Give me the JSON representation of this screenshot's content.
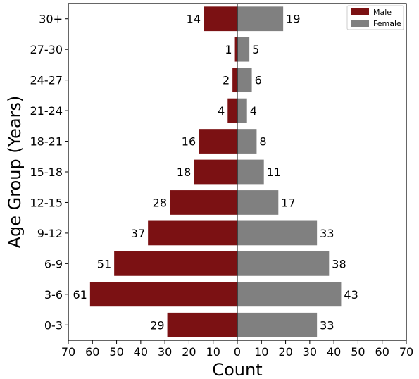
{
  "chart_data": {
    "type": "bar",
    "orientation": "horizontal",
    "layout": "population-pyramid",
    "categories": [
      "0-3",
      "3-6",
      "6-9",
      "9-12",
      "12-15",
      "15-18",
      "18-21",
      "21-24",
      "24-27",
      "27-30",
      "30+"
    ],
    "series": [
      {
        "name": "Male",
        "values": [
          29,
          61,
          51,
          37,
          28,
          18,
          16,
          4,
          2,
          1,
          14
        ],
        "color": "#7b1113",
        "side": "left"
      },
      {
        "name": "Female",
        "values": [
          33,
          43,
          38,
          33,
          17,
          11,
          8,
          4,
          6,
          5,
          19
        ],
        "color": "#808080",
        "side": "right"
      }
    ],
    "xlabel": "Count",
    "ylabel": "Age Group (Years)",
    "xlim": [
      -70,
      70
    ],
    "xtick_values": [
      -70,
      -60,
      -50,
      -40,
      -30,
      -20,
      -10,
      0,
      10,
      20,
      30,
      40,
      50,
      60,
      70
    ],
    "xtick_labels": [
      "70",
      "60",
      "50",
      "40",
      "30",
      "20",
      "10",
      "0",
      "10",
      "20",
      "30",
      "40",
      "50",
      "60",
      "70"
    ],
    "grid": false,
    "legend": {
      "placement": "top-right",
      "entries": [
        "Male",
        "Female"
      ]
    }
  }
}
